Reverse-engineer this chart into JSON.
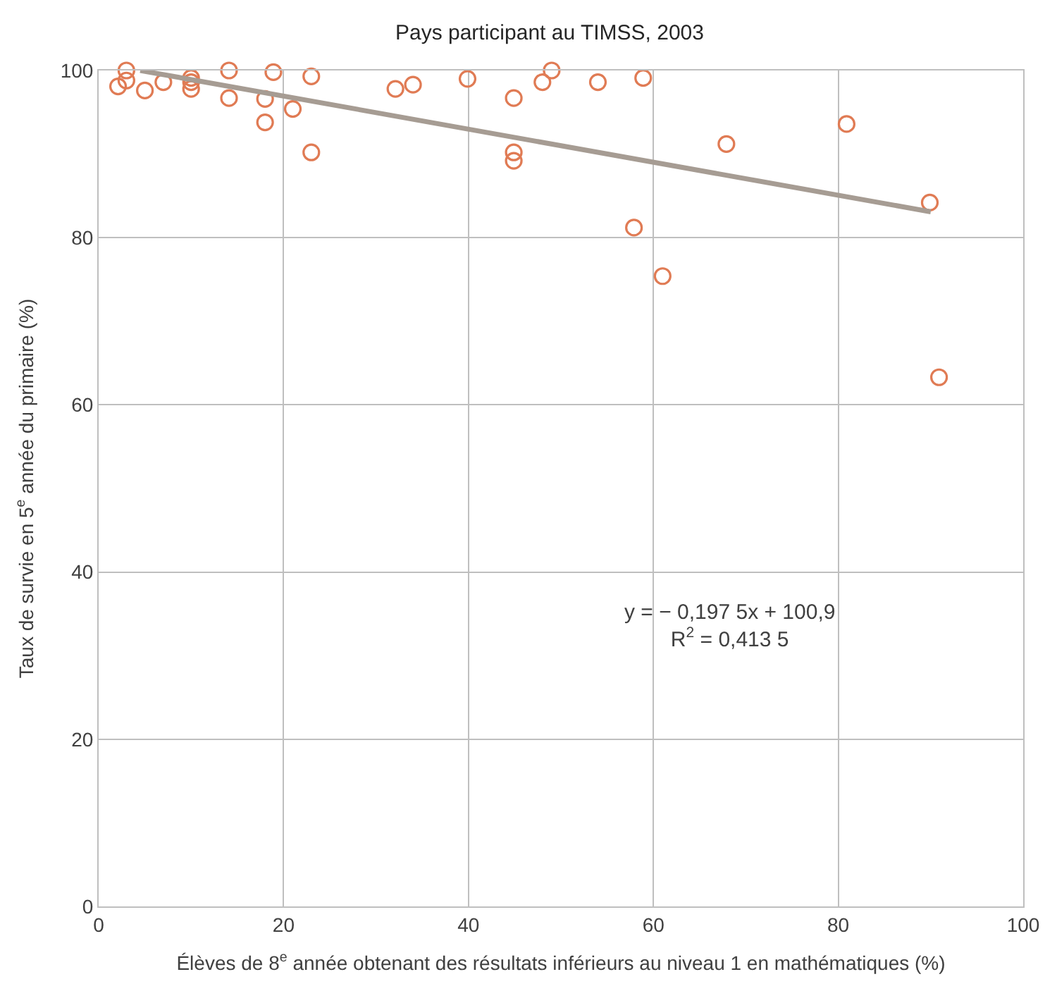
{
  "chart_data": {
    "type": "scatter",
    "title": "Pays participant au TIMSS, 2003",
    "xlabel": "Élèves de 8$^{e}$ année obtenant des résultats inférieurs au niveau 1 en mathématiques (%)",
    "ylabel": "Taux de survie en 5$^{e}$ année du primaire (%)",
    "xlim": [
      0,
      100
    ],
    "xticks": [
      0,
      20,
      40,
      60,
      80,
      100
    ],
    "ylim": [
      0,
      100
    ],
    "yticks": [
      0,
      20,
      40,
      60,
      80,
      100
    ],
    "grid": true,
    "marker": "circle",
    "series": [
      {
        "color": "#e07b54",
        "x": [
          2.1,
          3.0,
          3.0,
          5.0,
          7.0,
          10.0,
          10.0,
          10.0,
          14.1,
          14.1,
          18.9,
          18.0,
          18.0,
          21.0,
          23.0,
          23.0,
          32.1,
          34.0,
          39.9,
          44.9,
          44.9,
          44.9,
          48.0,
          49.0,
          54.0,
          58.9,
          57.9,
          61.0,
          67.9,
          80.9,
          89.9,
          90.9
        ],
        "values": [
          98.1,
          100,
          98.8,
          97.6,
          98.6,
          99.1,
          98.6,
          97.8,
          100,
          96.7,
          99.8,
          96.6,
          93.8,
          95.4,
          99.3,
          90.2,
          97.8,
          98.3,
          99.0,
          96.7,
          90.2,
          89.2,
          98.6,
          100,
          98.6,
          99.1,
          81.2,
          75.4,
          91.2,
          93.6,
          84.2,
          63.3
        ]
      },
      {
        "type": "line",
        "color": "#a69c93",
        "marker": "none",
        "x": [
          4.5,
          90.0
        ],
        "values": [
          100.0,
          83.1
        ]
      }
    ],
    "annotations": [
      "y = − 0,197 5x + 100,9\nR$^{2}$ = 0,413 5"
    ]
  }
}
